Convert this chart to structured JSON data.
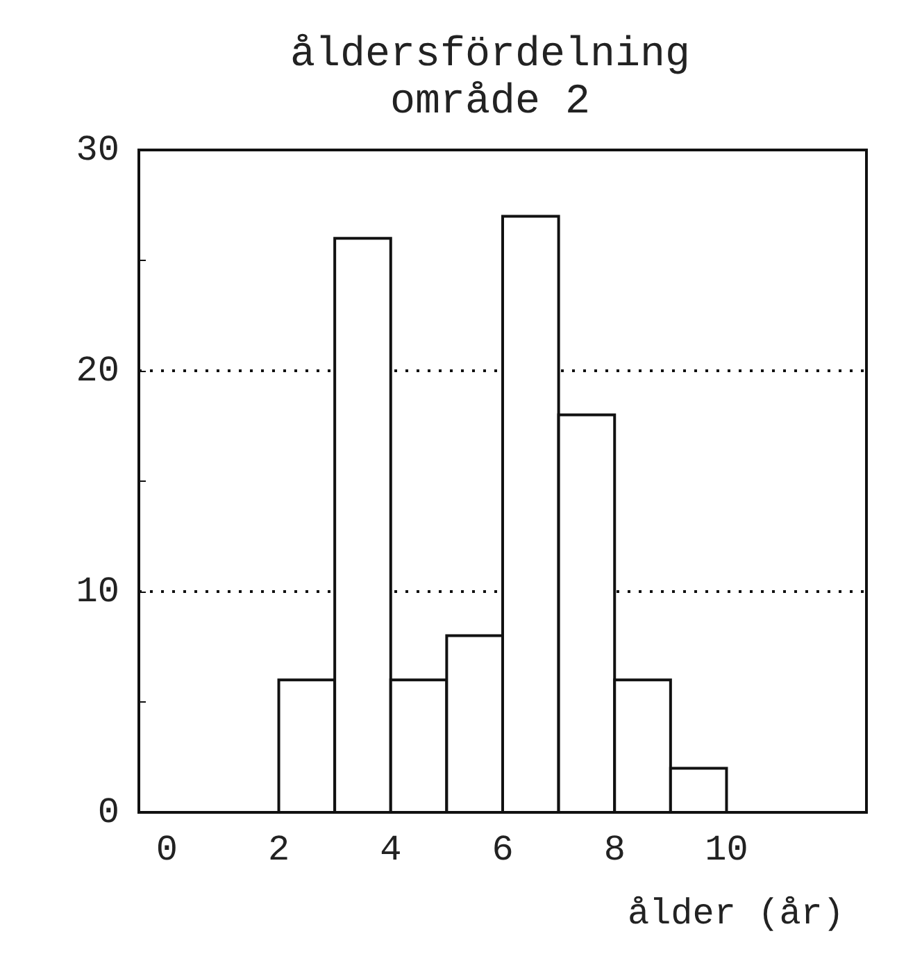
{
  "chart_data": {
    "type": "histogram",
    "title": "åldersfördelning",
    "subtitle": "område 2",
    "xlabel": "ålder (år)",
    "bins": [
      2,
      3,
      4,
      5,
      6,
      7,
      8,
      9,
      10
    ],
    "values": [
      6,
      26,
      6,
      8,
      27,
      18,
      6,
      2
    ],
    "color": "#ffffff",
    "xlim": [
      -0.5,
      12.5
    ],
    "xticks": [
      0,
      2,
      4,
      6,
      8,
      10
    ],
    "ylim": [
      0,
      30
    ],
    "yticks": [
      0,
      {
        "value": 5,
        "label": null
      },
      10,
      {
        "value": 15,
        "label": null
      },
      20,
      {
        "value": 25,
        "label": null
      },
      30
    ],
    "grid": "y"
  }
}
